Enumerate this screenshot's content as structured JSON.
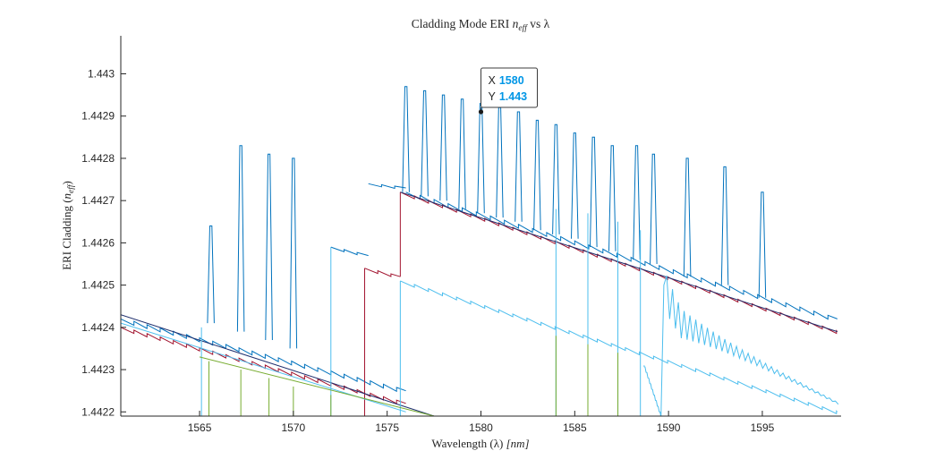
{
  "chart_data": {
    "type": "line",
    "title": "Cladding Mode ERI n_eff vs λ",
    "title_main": "Cladding Mode ERI ",
    "title_var": "n",
    "title_sub": "eff",
    "title_rest": " vs λ",
    "xlabel_main": "Wavelength (λ) ",
    "xlabel_unit": "[nm]",
    "ylabel_main": "ERI Cladding (",
    "ylabel_var": "n",
    "ylabel_sub": "eff",
    "ylabel_end": ")",
    "xlim": [
      1560.8,
      1599.2
    ],
    "ylim": [
      1.44219,
      1.44309
    ],
    "xticks": [
      1565,
      1570,
      1575,
      1580,
      1585,
      1590,
      1595
    ],
    "xtick_labels": [
      "1565",
      "1570",
      "1575",
      "1580",
      "1585",
      "1590",
      "1595"
    ],
    "yticks": [
      1.4422,
      1.4423,
      1.4424,
      1.4425,
      1.4426,
      1.4427,
      1.4428,
      1.4429,
      1.443
    ],
    "ytick_labels": [
      "1.4422",
      "1.4423",
      "1.4424",
      "1.4425",
      "1.4426",
      "1.4427",
      "1.4428",
      "1.4429",
      "1.443"
    ],
    "grid": false,
    "legend": "none",
    "colors": {
      "blue": "#0072bd",
      "red": "#a2142f",
      "navy": "#1f2f6e",
      "green": "#77ac30",
      "cyan": "#4dbeee"
    },
    "series": [
      {
        "color": "blue",
        "segments": [
          {
            "start": [
              1560.8,
              1.44242
            ],
            "end": [
              1576.0,
              1.44225
            ],
            "step": 0.7,
            "drop": 7e-06
          },
          {
            "start": [
              1572.0,
              1.44259
            ],
            "end": [
              1574.0,
              1.44257
            ],
            "step": 0.7,
            "drop": 4e-06
          },
          {
            "start": [
              1574.0,
              1.44274
            ],
            "end": [
              1576.0,
              1.44273
            ],
            "step": 0.7,
            "drop": 4e-06
          },
          {
            "start": [
              1576.0,
              1.44272
            ],
            "end": [
              1599.0,
              1.44242
            ],
            "step": 0.75,
            "drop": 7e-06
          }
        ],
        "spikes": [
          {
            "x": 1565.6,
            "top": 1.44264,
            "bottom": 1.44241
          },
          {
            "x": 1567.2,
            "top": 1.44283,
            "bottom": 1.44239
          },
          {
            "x": 1568.7,
            "top": 1.44281,
            "bottom": 1.44237
          },
          {
            "x": 1570.0,
            "top": 1.4428,
            "bottom": 1.44235
          },
          {
            "x": 1576.0,
            "top": 1.44297,
            "bottom": 1.44272
          },
          {
            "x": 1577.0,
            "top": 1.44296,
            "bottom": 1.44271
          },
          {
            "x": 1578.0,
            "top": 1.44295,
            "bottom": 1.4427
          },
          {
            "x": 1579.0,
            "top": 1.44294,
            "bottom": 1.44268
          },
          {
            "x": 1580.0,
            "top": 1.44293,
            "bottom": 1.44267
          },
          {
            "x": 1581.0,
            "top": 1.44292,
            "bottom": 1.44266
          },
          {
            "x": 1582.0,
            "top": 1.44291,
            "bottom": 1.44265
          },
          {
            "x": 1583.0,
            "top": 1.44289,
            "bottom": 1.44263
          },
          {
            "x": 1584.0,
            "top": 1.44288,
            "bottom": 1.44262
          },
          {
            "x": 1585.0,
            "top": 1.44286,
            "bottom": 1.44261
          },
          {
            "x": 1586.0,
            "top": 1.44285,
            "bottom": 1.44259
          },
          {
            "x": 1587.0,
            "top": 1.44283,
            "bottom": 1.44258
          },
          {
            "x": 1588.3,
            "top": 1.44283,
            "bottom": 1.44256
          },
          {
            "x": 1589.2,
            "top": 1.44281,
            "bottom": 1.44255
          },
          {
            "x": 1591.0,
            "top": 1.4428,
            "bottom": 1.44252
          },
          {
            "x": 1593.0,
            "top": 1.44278,
            "bottom": 1.4425
          },
          {
            "x": 1595.0,
            "top": 1.44272,
            "bottom": 1.44247
          }
        ]
      },
      {
        "color": "red",
        "segments": [
          {
            "start": [
              1560.8,
              1.4424
            ],
            "end": [
              1576.0,
              1.44222
            ],
            "step": 0.7,
            "drop": 6e-06
          },
          {
            "start": [
              1573.8,
              1.44254
            ],
            "end": [
              1575.7,
              1.44252
            ],
            "step": 0.7,
            "drop": 5e-06
          },
          {
            "start": [
              1575.7,
              1.44272
            ],
            "end": [
              1599.0,
              1.44239
            ],
            "step": 0.75,
            "drop": 5e-06
          }
        ],
        "verticals": [
          {
            "x": 1573.8,
            "from": 1.44219,
            "to": 1.44254
          },
          {
            "x": 1575.7,
            "from": 1.44252,
            "to": 1.44272
          }
        ]
      },
      {
        "color": "navy",
        "segments": [
          {
            "start": [
              1560.8,
              1.44243
            ],
            "end": [
              1577.5,
              1.44219
            ],
            "step": 0,
            "drop": 0
          },
          {
            "start": [
              1575.7,
              1.44272
            ],
            "end": [
              1599.0,
              1.44239
            ],
            "step": 0,
            "drop": 0
          }
        ]
      },
      {
        "color": "cyan",
        "segments": [
          {
            "start": [
              1560.8,
              1.44241
            ],
            "end": [
              1576.0,
              1.4422
            ],
            "step": 0,
            "drop": 0
          },
          {
            "start": [
              1575.7,
              1.44251
            ],
            "end": [
              1599.0,
              1.4422
            ],
            "step": 0.75,
            "drop": 5e-06
          }
        ],
        "verticals": [
          {
            "x": 1565.1,
            "from": 1.44219,
            "to": 1.4424
          },
          {
            "x": 1572.0,
            "from": 1.44219,
            "to": 1.44259
          },
          {
            "x": 1575.7,
            "from": 1.44219,
            "to": 1.44251
          },
          {
            "x": 1584.0,
            "from": 1.44219,
            "to": 1.44268
          },
          {
            "x": 1585.7,
            "from": 1.44219,
            "to": 1.44267
          },
          {
            "x": 1587.3,
            "from": 1.44219,
            "to": 1.44265
          },
          {
            "x": 1588.5,
            "from": 1.44219,
            "to": 1.44263
          }
        ]
      },
      {
        "color": "green",
        "segments": [
          {
            "start": [
              1565.0,
              1.44233
            ],
            "end": [
              1577.5,
              1.44219
            ],
            "step": 0,
            "drop": 0
          }
        ],
        "verticals": [
          {
            "x": 1565.5,
            "from": 1.44219,
            "to": 1.44232
          },
          {
            "x": 1567.2,
            "from": 1.44219,
            "to": 1.4423
          },
          {
            "x": 1568.7,
            "from": 1.44219,
            "to": 1.44228
          },
          {
            "x": 1570.0,
            "from": 1.44219,
            "to": 1.44226
          },
          {
            "x": 1572.0,
            "from": 1.44219,
            "to": 1.44224
          },
          {
            "x": 1584.0,
            "from": 1.44219,
            "to": 1.44238
          },
          {
            "x": 1585.7,
            "from": 1.44219,
            "to": 1.44236
          },
          {
            "x": 1587.3,
            "from": 1.44219,
            "to": 1.44234
          }
        ]
      }
    ],
    "resonance": {
      "x0": 1589.6,
      "y0": 1.44219,
      "peak": 1.4425,
      "color": "cyan"
    },
    "datatip": {
      "x": 1580,
      "y": 1.44291,
      "x_key": "X",
      "y_key": "Y",
      "x_value": "1580",
      "y_value": "1.443"
    }
  }
}
